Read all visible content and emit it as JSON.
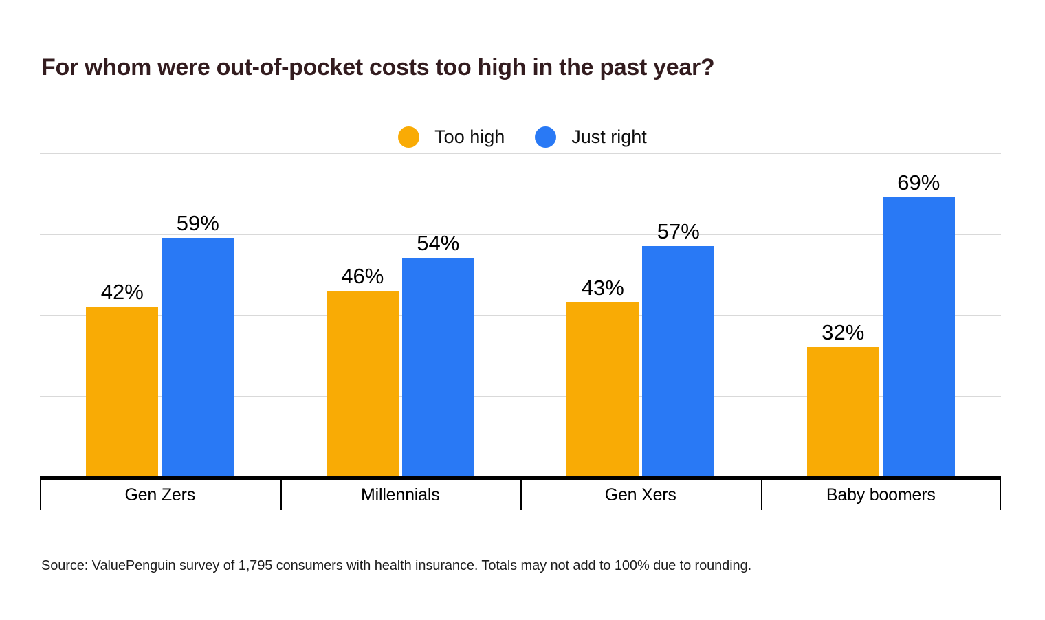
{
  "page": {
    "title": "For whom were out-of-pocket costs too high in the past year?",
    "source_note": "Source: ValuePenguin survey of 1,795 consumers with health insurance. Totals may not add to 100% due to rounding."
  },
  "colors": {
    "title_text": "#331C1F",
    "too_high": "#F9AB05",
    "just_right": "#2979F5",
    "gridline": "#D9D9D9",
    "axis_line": "#000000",
    "label_text": "#000000",
    "source_text": "#1C1C1C",
    "background": "#FFFFFF"
  },
  "chart_data": {
    "type": "bar",
    "title": "For whom were out-of-pocket costs too high in the past year?",
    "categories": [
      "Gen Zers",
      "Millennials",
      "Gen Xers",
      "Baby boomers"
    ],
    "series": [
      {
        "name": "Too high",
        "color": "#F9AB05",
        "values": [
          42,
          46,
          43,
          32
        ]
      },
      {
        "name": "Just right",
        "color": "#2979F5",
        "values": [
          59,
          54,
          57,
          69
        ]
      }
    ],
    "value_suffix": "%",
    "value_labels": "above-bars",
    "xlabel": "",
    "ylabel": "",
    "ylim": [
      0,
      80
    ],
    "gridlines_percent": [
      20,
      40,
      60,
      80
    ],
    "grid": true,
    "y_tick_labels_shown": false,
    "legend_position": "top-center"
  }
}
